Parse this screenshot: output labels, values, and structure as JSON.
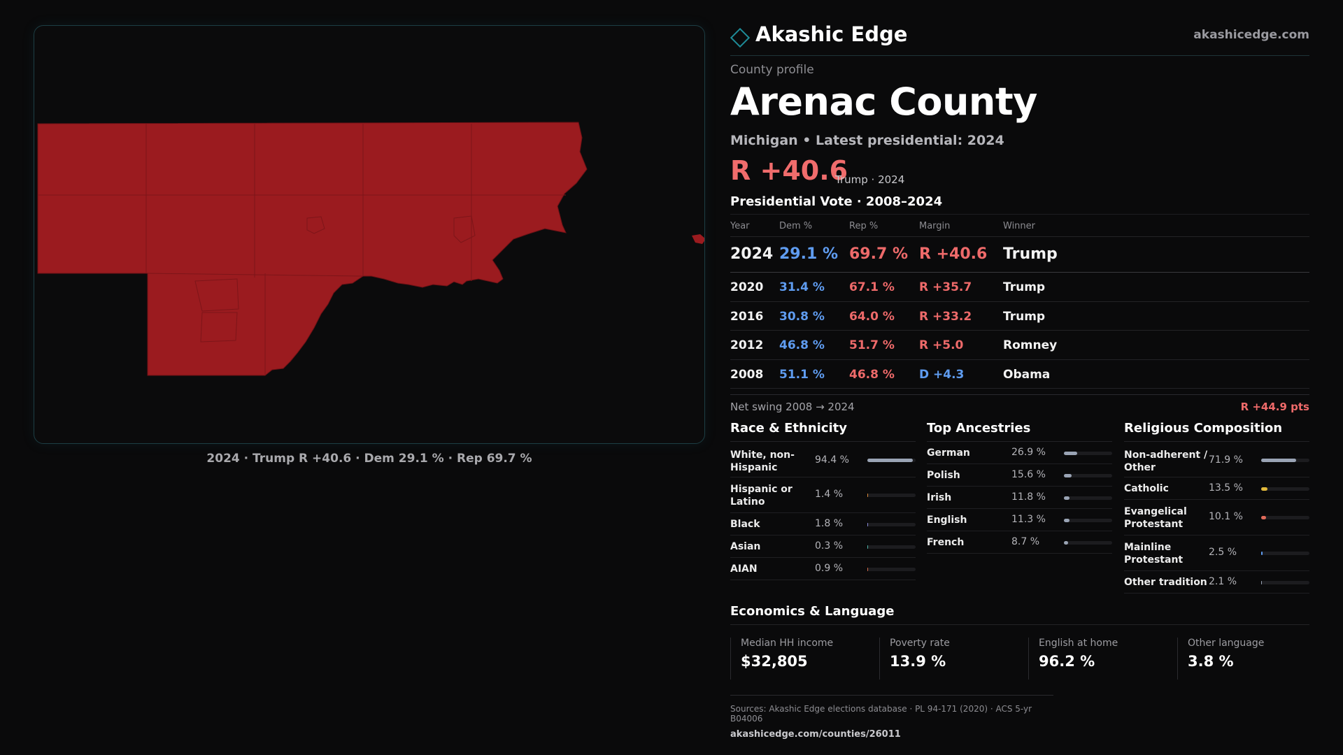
{
  "brand": {
    "name": "Akashic Edge",
    "url": "akashicedge.com",
    "icon": "diamond-icon",
    "accent": "#1e8c98"
  },
  "profile": {
    "eyebrow": "County profile",
    "county": "Arenac County",
    "subtitle": "Michigan • Latest presidential: 2024",
    "headline_margin": "R +40.6",
    "headline_note": "Trump · 2024"
  },
  "map": {
    "caption": "2024 · Trump R +40.6 · Dem 29.1 % · Rep 69.7 %",
    "fill_color": "#9b1b1f"
  },
  "vote_table": {
    "title": "Presidential Vote · 2008–2024",
    "headers": {
      "year": "Year",
      "dem": "Dem %",
      "rep": "Rep %",
      "margin": "Margin",
      "winner": "Winner"
    },
    "rows": [
      {
        "year": "2024",
        "dem": "29.1 %",
        "rep": "69.7 %",
        "margin": "R +40.6",
        "winner": "Trump"
      },
      {
        "year": "2020",
        "dem": "31.4 %",
        "rep": "67.1 %",
        "margin": "R +35.7",
        "winner": "Trump"
      },
      {
        "year": "2016",
        "dem": "30.8 %",
        "rep": "64.0 %",
        "margin": "R +33.2",
        "winner": "Trump"
      },
      {
        "year": "2012",
        "dem": "46.8 %",
        "rep": "51.7 %",
        "margin": "R +5.0",
        "winner": "Romney"
      },
      {
        "year": "2008",
        "dem": "51.1 %",
        "rep": "46.8 %",
        "margin": "D +4.3",
        "winner": "Obama"
      }
    ],
    "swing_label": "Net swing 2008 → 2024",
    "swing_value": "R +44.9 pts"
  },
  "race": {
    "title": "Race & Ethnicity",
    "items": [
      {
        "label": "White, non-Hispanic",
        "value": "94.4 %",
        "pct": 94.4,
        "color": "#9aa4b5"
      },
      {
        "label": "Hispanic or Latino",
        "value": "1.4 %",
        "pct": 1.4,
        "color": "#d98a3a"
      },
      {
        "label": "Black",
        "value": "1.8 %",
        "pct": 1.8,
        "color": "#8a8ad8"
      },
      {
        "label": "Asian",
        "value": "0.3 %",
        "pct": 0.3,
        "color": "#4fb3a8"
      },
      {
        "label": "AIAN",
        "value": "0.9 %",
        "pct": 0.9,
        "color": "#d46a4a"
      }
    ]
  },
  "ancestries": {
    "title": "Top Ancestries",
    "items": [
      {
        "label": "German",
        "value": "26.9 %",
        "pct": 26.9,
        "color": "#9aa4b5"
      },
      {
        "label": "Polish",
        "value": "15.6 %",
        "pct": 15.6,
        "color": "#9aa4b5"
      },
      {
        "label": "Irish",
        "value": "11.8 %",
        "pct": 11.8,
        "color": "#9aa4b5"
      },
      {
        "label": "English",
        "value": "11.3 %",
        "pct": 11.3,
        "color": "#9aa4b5"
      },
      {
        "label": "French",
        "value": "8.7 %",
        "pct": 8.7,
        "color": "#9aa4b5"
      }
    ]
  },
  "religion": {
    "title": "Religious Composition",
    "items": [
      {
        "label": "Non-adherent / Other",
        "value": "71.9 %",
        "pct": 71.9,
        "color": "#9aa4b5"
      },
      {
        "label": "Catholic",
        "value": "13.5 %",
        "pct": 13.5,
        "color": "#e2b93b"
      },
      {
        "label": "Evangelical Protestant",
        "value": "10.1 %",
        "pct": 10.1,
        "color": "#e06a5a"
      },
      {
        "label": "Mainline Protestant",
        "value": "2.5 %",
        "pct": 2.5,
        "color": "#5f9cf0"
      },
      {
        "label": "Other tradition",
        "value": "2.1 %",
        "pct": 2.1,
        "color": "#9aa4b5"
      }
    ]
  },
  "economics": {
    "title": "Economics & Language",
    "items": [
      {
        "label": "Median HH income",
        "value": "$32,805"
      },
      {
        "label": "Poverty rate",
        "value": "13.9 %"
      },
      {
        "label": "English at home",
        "value": "96.2 %"
      },
      {
        "label": "Other language",
        "value": "3.8 %"
      }
    ]
  },
  "footer": {
    "sources": "Sources: Akashic Edge elections database · PL 94-171 (2020) · ACS 5-yr B04006",
    "url": "akashicedge.com/counties/26011"
  }
}
